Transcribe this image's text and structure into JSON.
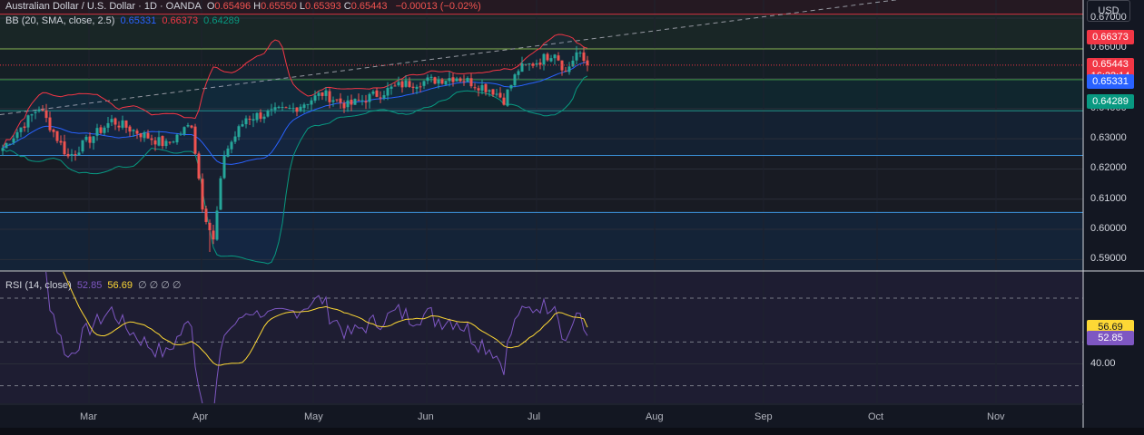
{
  "header": {
    "symbol": "Australian Dollar / U.S. Dollar · 1D · OANDA",
    "ohlc": [
      {
        "k": "O",
        "v": "0.65496"
      },
      {
        "k": "H",
        "v": "0.65550"
      },
      {
        "k": "L",
        "v": "0.65393"
      },
      {
        "k": "C",
        "v": "0.65443"
      }
    ],
    "change": "−0.00013 (−0.02%)",
    "currency": "USD"
  },
  "bb_legend": {
    "label": "BB (20, SMA, close, 2.5)",
    "basis": "0.65331",
    "upper": "0.66373",
    "lower": "0.64289"
  },
  "rsi_legend": {
    "label": "RSI (14, close)",
    "rsi": "52.85",
    "ma": "56.69",
    "extra": "∅ ∅ ∅ ∅"
  },
  "price_tags": {
    "upper": "0.66373",
    "last": "0.65443",
    "countdown": "16:22:14",
    "basis": "0.65331",
    "lower": "0.64289"
  },
  "rsi_tags": {
    "ma": "56.69",
    "rsi": "52.85"
  },
  "colors": {
    "bg": "#131722",
    "up": "#26a69a",
    "down": "#ef5350",
    "bb_basis": "#2962ff",
    "bb_upper": "#f23645",
    "bb_lower": "#089981",
    "rsi": "#7e57c2",
    "rsi_ma": "#fdd835"
  },
  "chart_data": {
    "type": "candlestick",
    "title": "Australian Dollar / U.S. Dollar · 1D · OANDA",
    "price_axis": {
      "ticks": [
        "0.67000",
        "0.66000",
        "0.65000",
        "0.64000",
        "0.63000",
        "0.62000",
        "0.61000",
        "0.60000",
        "0.59000"
      ],
      "range": [
        0.5865,
        0.676
      ]
    },
    "rsi_axis": {
      "ticks": [
        "40.00"
      ],
      "range": [
        22,
        82
      ]
    },
    "x_axis": {
      "ticks": [
        "Mar",
        "Apr",
        "May",
        "Jun",
        "Jul",
        "Aug",
        "Sep",
        "Oct",
        "Nov"
      ]
    },
    "horizontal_levels": [
      0.6713,
      0.6598,
      0.6496,
      0.6393,
      0.6245,
      0.6056
    ],
    "anchor_points": [
      {
        "label": "start",
        "bar": 0,
        "close": 0.627
      },
      {
        "bar": 10,
        "close": 0.6405
      },
      {
        "bar": 18,
        "close": 0.624
      },
      {
        "bar": 30,
        "close": 0.636
      },
      {
        "bar": 45,
        "close": 0.628
      },
      {
        "bar": 52,
        "close": 0.635
      },
      {
        "bar": 55,
        "close": 0.608
      },
      {
        "bar": 58,
        "close": 0.596
      },
      {
        "bar": 61,
        "close": 0.625
      },
      {
        "bar": 67,
        "close": 0.637
      },
      {
        "bar": 80,
        "close": 0.64
      },
      {
        "bar": 88,
        "close": 0.645
      },
      {
        "bar": 95,
        "close": 0.641
      },
      {
        "bar": 110,
        "close": 0.648
      },
      {
        "bar": 125,
        "close": 0.6505
      },
      {
        "bar": 135,
        "close": 0.646
      },
      {
        "bar": 138,
        "close": 0.643
      },
      {
        "bar": 142,
        "close": 0.653
      },
      {
        "bar": 148,
        "close": 0.656
      },
      {
        "bar": 152,
        "close": 0.659
      },
      {
        "bar": 155,
        "close": 0.652
      },
      {
        "bar": 158,
        "close": 0.6585
      },
      {
        "bar": 161,
        "close": 0.6544
      }
    ],
    "last_close": 0.65443,
    "bollinger": {
      "period": 20,
      "mult": 2.5,
      "basis_last": 0.65331,
      "upper_last": 0.66373,
      "lower_last": 0.64289
    },
    "rsi": {
      "period": 14,
      "last": 52.85,
      "ma_last": 56.69,
      "upper_band": 70,
      "middle": 50,
      "lower_band": 30
    }
  }
}
